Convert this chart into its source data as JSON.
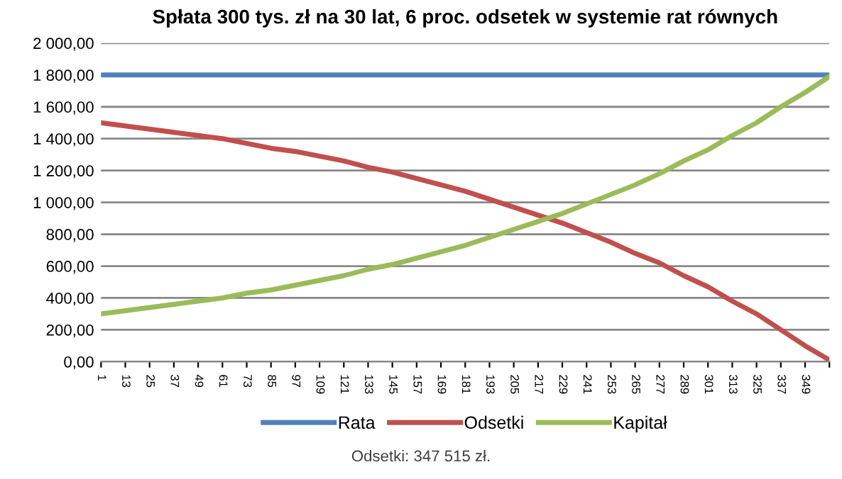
{
  "chart_data": {
    "type": "line",
    "title": "Spłata 300 tys. zł na 30 lat, 6 proc. odsetek w systemie rat równych",
    "categories": [
      "1",
      "13",
      "25",
      "37",
      "49",
      "61",
      "73",
      "85",
      "97",
      "109",
      "121",
      "133",
      "145",
      "157",
      "169",
      "181",
      "193",
      "205",
      "217",
      "229",
      "241",
      "253",
      "265",
      "277",
      "289",
      "301",
      "313",
      "325",
      "337",
      "349",
      null
    ],
    "series": [
      {
        "name": "Rata",
        "color": "#4f81bd",
        "values": [
          1800,
          1800,
          1800,
          1800,
          1800,
          1800,
          1800,
          1800,
          1800,
          1800,
          1800,
          1800,
          1800,
          1800,
          1800,
          1800,
          1800,
          1800,
          1800,
          1800,
          1800,
          1800,
          1800,
          1800,
          1800,
          1800,
          1800,
          1800,
          1800,
          1800,
          1800
        ]
      },
      {
        "name": "Odsetki",
        "color": "#c0504d",
        "values": [
          1500,
          1480,
          1460,
          1440,
          1420,
          1400,
          1370,
          1340,
          1320,
          1290,
          1260,
          1220,
          1190,
          1150,
          1110,
          1070,
          1020,
          970,
          920,
          870,
          810,
          750,
          680,
          620,
          540,
          470,
          380,
          300,
          200,
          100,
          10
        ]
      },
      {
        "name": "Kapitał",
        "color": "#9bbb59",
        "values": [
          300,
          320,
          340,
          360,
          380,
          400,
          430,
          450,
          480,
          510,
          540,
          580,
          610,
          650,
          690,
          730,
          780,
          830,
          880,
          930,
          990,
          1050,
          1110,
          1180,
          1260,
          1330,
          1420,
          1500,
          1600,
          1690,
          1790
        ]
      }
    ],
    "ylim": [
      0,
      2000
    ],
    "yticks": [
      {
        "value": 0,
        "label": "0,00"
      },
      {
        "value": 200,
        "label": "200,00"
      },
      {
        "value": 400,
        "label": "400,00"
      },
      {
        "value": 600,
        "label": "600,00"
      },
      {
        "value": 800,
        "label": "800,00"
      },
      {
        "value": 1000,
        "label": "1 000,00"
      },
      {
        "value": 1200,
        "label": "1 200,00"
      },
      {
        "value": 1400,
        "label": "1 400,00"
      },
      {
        "value": 1600,
        "label": "1 600,00"
      },
      {
        "value": 1800,
        "label": "1 800,00"
      },
      {
        "value": 2000,
        "label": "2 000,00"
      }
    ],
    "grid": "y",
    "legend": "bottom",
    "marker": "none",
    "line_style": "solid",
    "annotations": [
      "Odsetki: 347 515 zł."
    ]
  }
}
